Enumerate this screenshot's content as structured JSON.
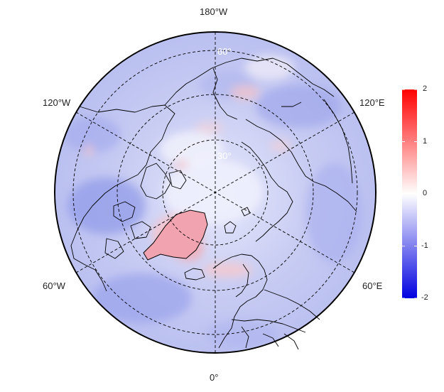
{
  "map": {
    "projection": "north-polar-stereographic",
    "longitude_labels": {
      "top": "180°W",
      "bottom": "0°",
      "upper_left": "120°W",
      "upper_right": "120°E",
      "lower_left": "60°W",
      "lower_right": "60°E"
    },
    "latitude_labels": [
      "60°",
      "30°"
    ],
    "colors": {
      "negative": "#0000e0",
      "zero": "#ffffff",
      "positive": "#ff0000",
      "coastline": "#000000"
    }
  },
  "colorbar": {
    "ticks": [
      "2",
      "1",
      "0",
      "-1",
      "-2"
    ],
    "range": [
      -2,
      2
    ]
  }
}
